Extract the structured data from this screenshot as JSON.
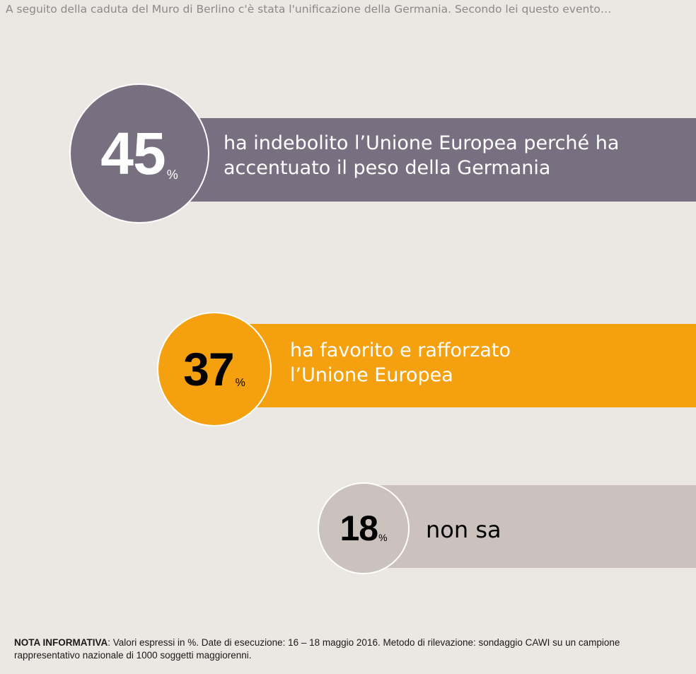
{
  "question": "A seguito della caduta del Muro di Berlino c'è stata l'unificazione della Germania. Secondo lei questo evento…",
  "chart_data": {
    "type": "bar",
    "categories": [
      "ha indebolito l’Unione Europea perché ha accentuato il peso della Germania",
      "ha favorito e rafforzato l’Unione Europea",
      "non sa"
    ],
    "values": [
      45,
      37,
      18
    ],
    "unit": "%",
    "colors": [
      "#787080",
      "#f5a00f",
      "#cbc2bd"
    ]
  },
  "items": [
    {
      "value": "45",
      "unit": "%",
      "label_line1": "ha indebolito l’Unione Europea perché ha",
      "label_line2": "accentuato il peso della Germania",
      "color": "#787080"
    },
    {
      "value": "37",
      "unit": "%",
      "label_line1": "ha favorito e rafforzato",
      "label_line2": "l’Unione Europea",
      "color": "#f5a00f"
    },
    {
      "value": "18",
      "unit": "%",
      "label_line1": "non sa",
      "label_line2": "",
      "color": "#cbc2bd"
    }
  ],
  "note": {
    "heading": "NOTA INFORMATIVA",
    "text": ": Valori espressi in %. Date di esecuzione: 16 – 18 maggio 2016. Metodo di rilevazione: sondaggio CAWI su un campione rappresentativo nazionale di 1000 soggetti maggiorenni."
  }
}
